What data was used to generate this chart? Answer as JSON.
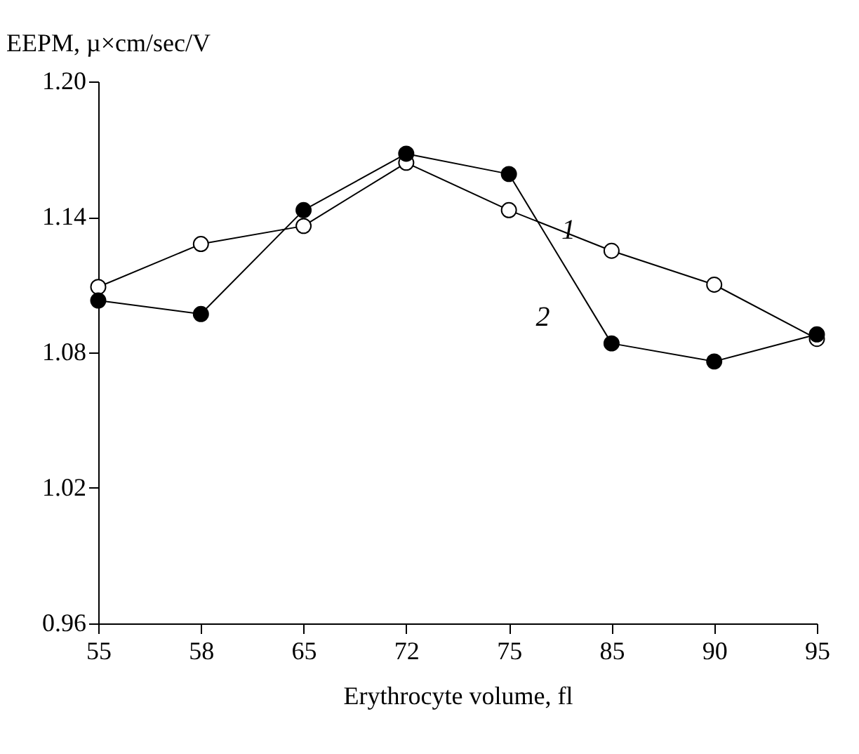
{
  "chart_data": {
    "type": "line",
    "xlabel": "Erythrocyte volume, fl",
    "ylabel": "EEPM, µ×cm/sec/V",
    "categories": [
      "55",
      "58",
      "65",
      "72",
      "75",
      "85",
      "90",
      "95"
    ],
    "series": [
      {
        "name": "1",
        "color": "#000000",
        "values": [
          1.109,
          1.128,
          1.136,
          1.164,
          1.143,
          1.125,
          1.11,
          1.086
        ]
      },
      {
        "name": "2",
        "color": "#000000",
        "values": [
          1.103,
          1.097,
          1.143,
          1.168,
          1.159,
          1.084,
          1.076,
          1.088
        ]
      }
    ],
    "ylim": [
      0.96,
      1.2
    ],
    "yticks": [
      0.96,
      1.02,
      1.08,
      1.14,
      {
        "value": 1.2,
        "label": "1.20"
      }
    ],
    "grid": false,
    "marker": "circle",
    "line_style": "solid"
  }
}
